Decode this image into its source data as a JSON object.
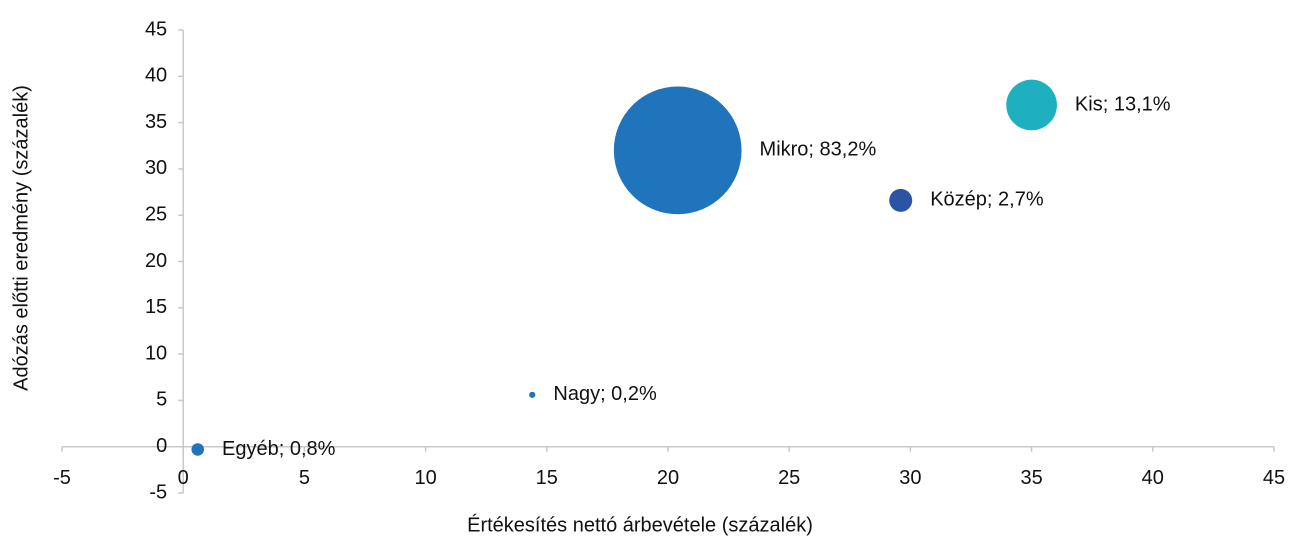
{
  "chart_data": {
    "type": "bubble",
    "xlabel": "Értékesítés nettó árbevétele (százalék)",
    "ylabel": "Adózás előtti eredmény (százalék)",
    "xlim": [
      -5,
      45
    ],
    "xticks": [
      -5,
      0,
      5,
      10,
      15,
      20,
      25,
      30,
      35,
      40,
      45
    ],
    "ylim": [
      -5,
      45
    ],
    "yticks": [
      -5,
      0,
      5,
      10,
      15,
      20,
      25,
      30,
      35,
      40,
      45
    ],
    "points": [
      {
        "label": "Mikro; 83,2%",
        "x": 20.4,
        "y": 32,
        "size": 83.2,
        "color": "#1f74bb"
      },
      {
        "label": "Kis; 13,1%",
        "x": 35,
        "y": 36.9,
        "size": 13.1,
        "color": "#1fb0c0"
      },
      {
        "label": "Közép; 2,7%",
        "x": 29.6,
        "y": 26.6,
        "size": 2.7,
        "color": "#2b54a5"
      },
      {
        "label": "Nagy; 0,2%",
        "x": 14.4,
        "y": 5.6,
        "size": 0.2,
        "color": "#1f74bb"
      },
      {
        "label": "Egyéb; 0,8%",
        "x": 0.6,
        "y": -0.3,
        "size": 0.8,
        "color": "#1f74bb"
      }
    ]
  }
}
